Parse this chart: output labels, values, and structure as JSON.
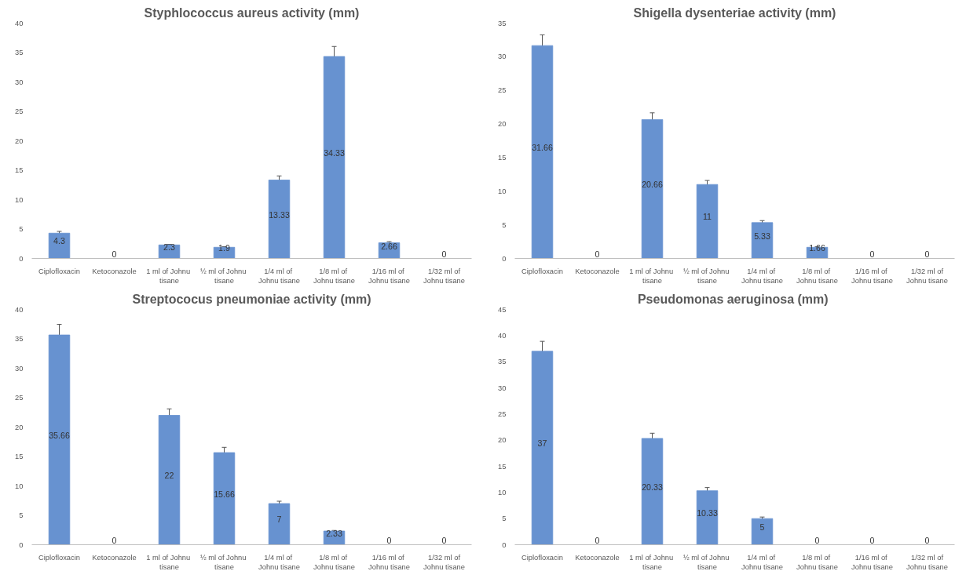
{
  "chart_data": [
    {
      "type": "bar",
      "title": "Styphlococcus aureus activity (mm)",
      "categories": [
        "Ciplofloxacin",
        "Ketoconazole",
        "1 ml  of Johnu tisane",
        "½ ml  of Johnu tisane",
        "1/4 ml  of Johnu tisane",
        "1/8 ml  of Johnu tisane",
        "1/16 ml  of Johnu tisane",
        "1/32 ml of Johnu tisane"
      ],
      "values": [
        4.3,
        0,
        2.3,
        1.9,
        13.33,
        34.33,
        2.66,
        0
      ],
      "errors": [
        0.3,
        null,
        0.1,
        0.1,
        0.7,
        1.7,
        0.2,
        null
      ],
      "color": "#6792d0",
      "ylim": [
        0,
        40
      ],
      "yticks": [
        0,
        5,
        10,
        15,
        20,
        25,
        30,
        35,
        40
      ],
      "data_labels": true,
      "grid": false
    },
    {
      "type": "bar",
      "title": "Shigella dysenteriae activity (mm)",
      "categories": [
        "Ciplofloxacin",
        "Ketoconazole",
        "1 ml  of Johnu tisane",
        "½ ml  of Johnu tisane",
        "1/4 ml  of Johnu tisane",
        "1/8 ml  of Johnu tisane",
        "1/16 ml  of Johnu tisane",
        "1/32 ml of Johnu tisane"
      ],
      "values": [
        31.66,
        0,
        20.66,
        11,
        5.33,
        1.66,
        0,
        0
      ],
      "errors": [
        1.6,
        null,
        1,
        0.6,
        0.3,
        0.1,
        null,
        null
      ],
      "color": "#6792d0",
      "ylim": [
        0,
        35
      ],
      "yticks": [
        0,
        5,
        10,
        15,
        20,
        25,
        30,
        35
      ],
      "data_labels": true,
      "grid": false
    },
    {
      "type": "bar",
      "title": "Streptococus pneumoniae activity (mm)",
      "categories": [
        "Ciplofloxacin",
        "Ketoconazole",
        "1 ml  of Johnu tisane",
        "½ ml  of Johnu tisane",
        "1/4 ml  of Johnu tisane",
        "1/8 ml  of Johnu tisane",
        "1/16 ml  of Johnu tisane",
        "1/32 ml of Johnu tisane"
      ],
      "values": [
        35.66,
        0,
        22,
        15.66,
        7,
        2.33,
        0,
        0
      ],
      "errors": [
        1.8,
        null,
        1.1,
        0.9,
        0.4,
        0.1,
        null,
        null
      ],
      "color": "#6792d0",
      "ylim": [
        0,
        40
      ],
      "yticks": [
        0,
        5,
        10,
        15,
        20,
        25,
        30,
        35,
        40
      ],
      "data_labels": true,
      "grid": false
    },
    {
      "type": "bar",
      "title": "Pseudomonas  aeruginosa (mm)",
      "categories": [
        "Ciplofloxacin",
        "Ketoconazole",
        "1 ml  of Johnu tisane",
        "½ ml  of Johnu tisane",
        "1/4 ml  of Johnu tisane",
        "1/8 ml  of Johnu tisane",
        "1/16 ml  of Johnu tisane",
        "1/32 ml of Johnu tisane"
      ],
      "values": [
        37,
        0,
        20.33,
        10.33,
        5,
        0,
        0,
        0
      ],
      "errors": [
        1.9,
        null,
        1,
        0.6,
        0.3,
        null,
        null,
        null
      ],
      "color": "#6792d0",
      "ylim": [
        0,
        45
      ],
      "yticks": [
        0,
        5,
        10,
        15,
        20,
        25,
        30,
        35,
        40,
        45
      ],
      "data_labels": true,
      "grid": false
    }
  ]
}
